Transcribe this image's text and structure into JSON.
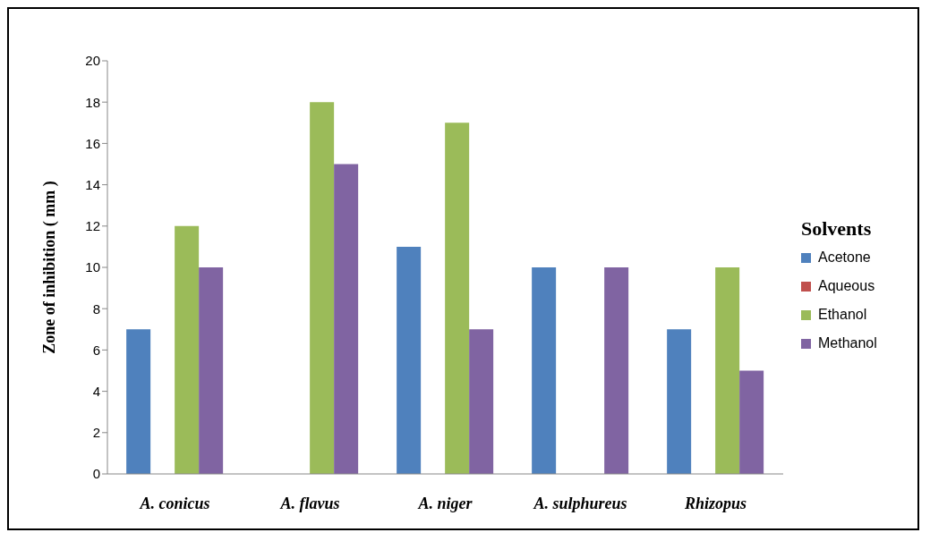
{
  "chart_data": {
    "type": "bar",
    "ylabel": "Zone of inhibition ( mm )",
    "legend_title": "Solvents",
    "categories": [
      "A. conicus",
      "A. flavus",
      "A. niger",
      "A. sulphureus",
      "Rhizopus"
    ],
    "series": [
      {
        "name": "Acetone",
        "color": "#4f81bd",
        "values": [
          7,
          0,
          11,
          10,
          7
        ]
      },
      {
        "name": "Aqueous",
        "color": "#c0504d",
        "values": [
          0,
          0,
          0,
          0,
          0
        ]
      },
      {
        "name": "Ethanol",
        "color": "#9bbb59",
        "values": [
          12,
          18,
          17,
          0,
          10
        ]
      },
      {
        "name": "Methanol",
        "color": "#8064a2",
        "values": [
          10,
          15,
          7,
          10,
          5
        ]
      }
    ],
    "ylim": [
      0,
      20
    ],
    "yticks": [
      0,
      2,
      4,
      6,
      8,
      10,
      12,
      14,
      16,
      18,
      20
    ],
    "grid": false,
    "legend": "right"
  }
}
